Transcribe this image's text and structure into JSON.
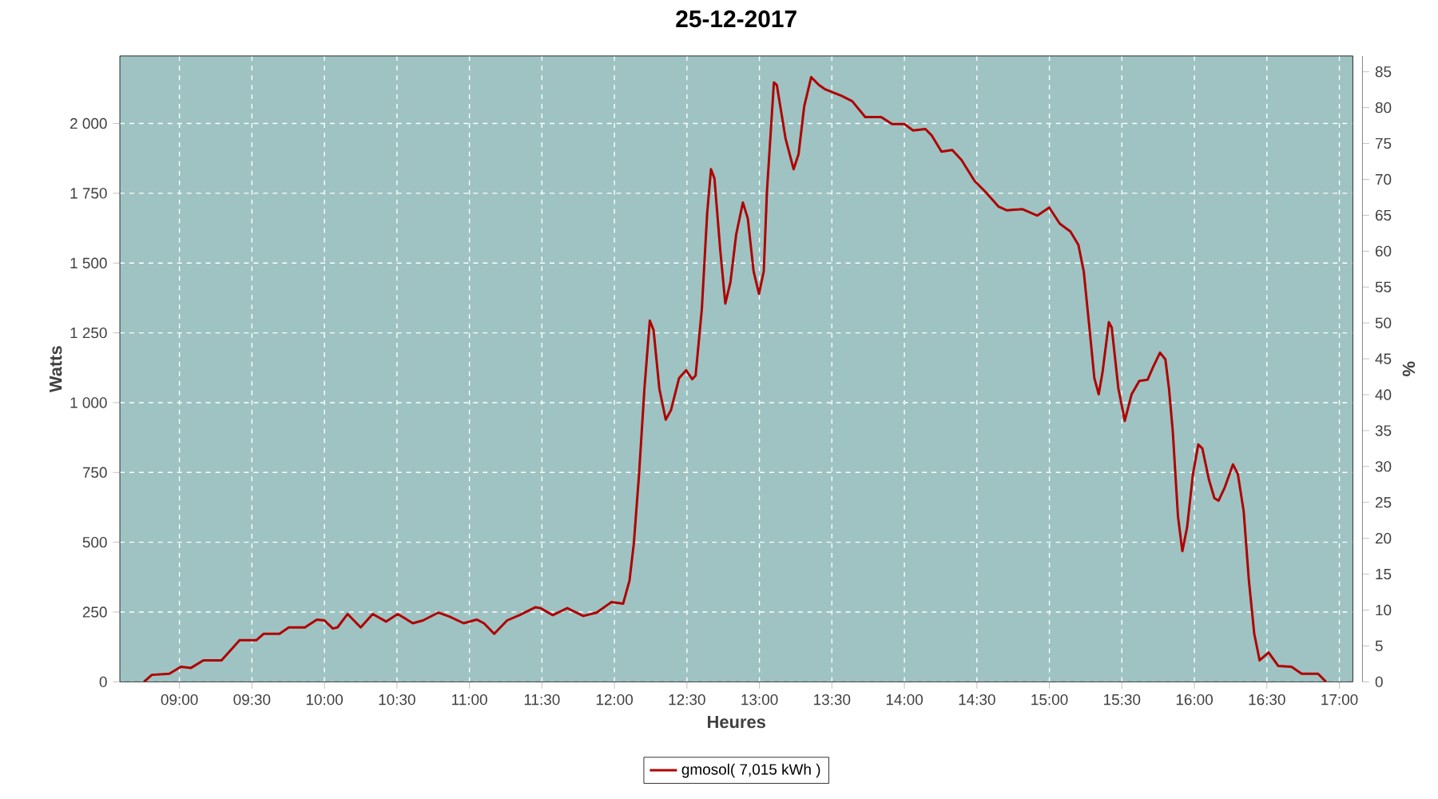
{
  "chart_data": {
    "type": "line",
    "title": "25-12-2017",
    "xlabel": "Heures",
    "ylabel": "Watts",
    "y2label": "%",
    "xlim": [
      8.589,
      17.093
    ],
    "ylim": [
      0,
      2242
    ],
    "y2lim": [
      0,
      87.2
    ],
    "xticks": [
      {
        "value": 9,
        "label": "09:00"
      },
      {
        "value": 9.5,
        "label": "09:30"
      },
      {
        "value": 10,
        "label": "10:00"
      },
      {
        "value": 10.5,
        "label": "10:30"
      },
      {
        "value": 11,
        "label": "11:00"
      },
      {
        "value": 11.5,
        "label": "11:30"
      },
      {
        "value": 12,
        "label": "12:00"
      },
      {
        "value": 12.5,
        "label": "12:30"
      },
      {
        "value": 13,
        "label": "13:00"
      },
      {
        "value": 13.5,
        "label": "13:30"
      },
      {
        "value": 14,
        "label": "14:00"
      },
      {
        "value": 14.5,
        "label": "14:30"
      },
      {
        "value": 15,
        "label": "15:00"
      },
      {
        "value": 15.5,
        "label": "15:30"
      },
      {
        "value": 16,
        "label": "16:00"
      },
      {
        "value": 16.5,
        "label": "16:30"
      },
      {
        "value": 17,
        "label": "17:00"
      }
    ],
    "yticks": [
      0,
      250,
      500,
      750,
      {
        "value": 1000,
        "label": "1 000"
      },
      {
        "value": 1250,
        "label": "1 250"
      },
      {
        "value": 1500,
        "label": "1 500"
      },
      {
        "value": 1750,
        "label": "1 750"
      },
      {
        "value": 2000,
        "label": "2 000"
      }
    ],
    "y2ticks": [
      0,
      5,
      10,
      15,
      20,
      25,
      30,
      35,
      40,
      45,
      50,
      55,
      60,
      65,
      70,
      75,
      80,
      85
    ],
    "grid": true,
    "legend": "bottom",
    "series": [
      {
        "name": "gmosol( 7,015 kWh )",
        "color": "#b00000",
        "x": [
          8.755,
          8.81,
          8.93,
          9.01,
          9.08,
          9.165,
          9.29,
          9.415,
          9.53,
          9.58,
          9.69,
          9.754,
          9.865,
          9.948,
          10.0,
          10.058,
          10.09,
          10.16,
          10.25,
          10.333,
          10.425,
          10.505,
          10.61,
          10.68,
          10.785,
          10.865,
          10.96,
          11.05,
          11.1,
          11.171,
          11.26,
          11.345,
          11.454,
          11.49,
          11.575,
          11.675,
          11.785,
          11.877,
          11.98,
          12.06,
          12.104,
          12.134,
          12.17,
          12.207,
          12.244,
          12.27,
          12.31,
          12.354,
          12.39,
          12.446,
          12.494,
          12.537,
          12.56,
          12.603,
          12.64,
          12.666,
          12.69,
          12.73,
          12.765,
          12.8,
          12.84,
          12.886,
          12.92,
          12.96,
          12.997,
          13.03,
          13.052,
          13.08,
          13.1,
          13.12,
          13.18,
          13.236,
          13.27,
          13.309,
          13.357,
          13.41,
          13.455,
          13.566,
          13.64,
          13.73,
          13.84,
          13.915,
          14.0,
          14.06,
          14.145,
          14.19,
          14.256,
          14.33,
          14.393,
          14.484,
          14.557,
          14.65,
          14.705,
          14.815,
          14.917,
          14.999,
          15.072,
          15.145,
          15.2,
          15.237,
          15.274,
          15.31,
          15.34,
          15.366,
          15.41,
          15.43,
          15.476,
          15.52,
          15.567,
          15.62,
          15.677,
          15.714,
          15.763,
          15.8,
          15.825,
          15.851,
          15.887,
          15.917,
          15.95,
          15.99,
          16.027,
          16.055,
          16.1,
          16.138,
          16.167,
          16.21,
          16.266,
          16.3,
          16.34,
          16.376,
          16.413,
          16.45,
          16.512,
          16.578,
          16.67,
          16.74,
          16.853,
          16.908
        ],
        "values": [
          0,
          25,
          29,
          54,
          50,
          77,
          77,
          149,
          149,
          172,
          172,
          195,
          195,
          223,
          220,
          191,
          195,
          243,
          195,
          243,
          216,
          243,
          210,
          220,
          248,
          233,
          210,
          223,
          210,
          172,
          220,
          239,
          267,
          264,
          239,
          264,
          236,
          248,
          286,
          280,
          363,
          496,
          744,
          1050,
          1294,
          1260,
          1050,
          939,
          973,
          1088,
          1116,
          1084,
          1097,
          1336,
          1680,
          1836,
          1803,
          1546,
          1355,
          1431,
          1603,
          1717,
          1660,
          1470,
          1390,
          1470,
          1756,
          1985,
          2147,
          2138,
          1947,
          1836,
          1890,
          2061,
          2166,
          2138,
          2122,
          2099,
          2080,
          2023,
          2023,
          1998,
          1998,
          1975,
          1980,
          1956,
          1899,
          1905,
          1870,
          1794,
          1756,
          1702,
          1689,
          1693,
          1670,
          1699,
          1641,
          1613,
          1565,
          1470,
          1279,
          1088,
          1030,
          1107,
          1288,
          1269,
          1050,
          935,
          1030,
          1078,
          1082,
          1126,
          1179,
          1155,
          1050,
          897,
          592,
          468,
          554,
          744,
          850,
          836,
          725,
          658,
          649,
          697,
          779,
          744,
          611,
          363,
          172,
          77,
          105,
          57,
          54,
          29,
          29,
          0
        ]
      }
    ]
  }
}
